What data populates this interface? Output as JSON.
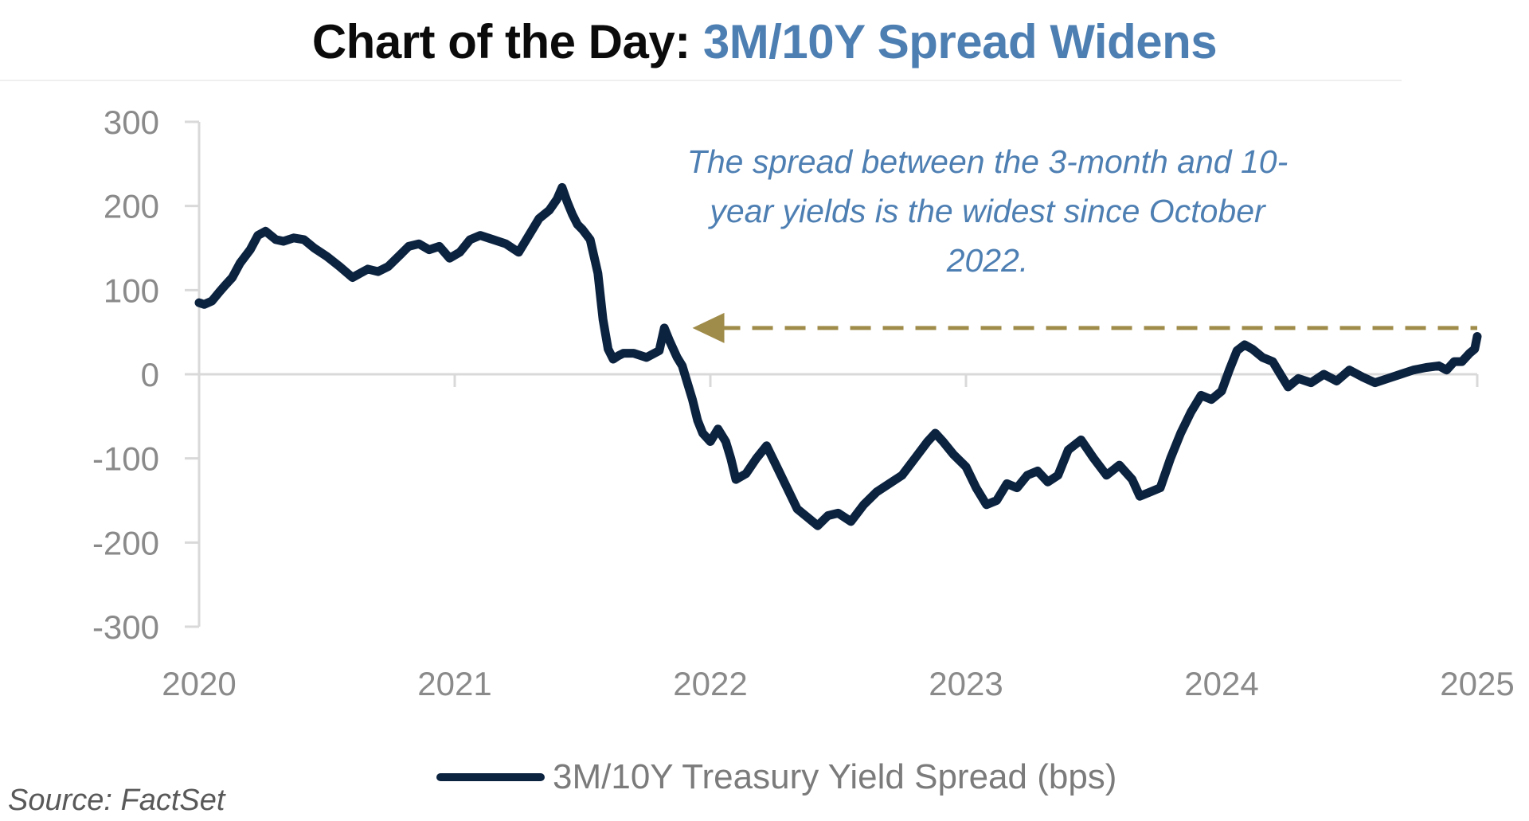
{
  "title": {
    "prefix": "Chart of the Day:",
    "subject": "3M/10Y Spread Widens"
  },
  "colors": {
    "title_text": "#0b0b0b",
    "title_accent": "#4e7fb3",
    "series": "#0c2340",
    "reference_line": "#a08c4a",
    "axis": "#d9d9d9",
    "tick_text": "#8a8a8a"
  },
  "annotation": {
    "text": "The spread between the 3-month and 10-year yields is the widest since October 2022."
  },
  "source": "Source: FactSet",
  "chart_data": {
    "type": "line",
    "title": "Chart of the Day: 3M/10Y Spread Widens",
    "xlabel": "",
    "ylabel": "",
    "xlim": [
      2020,
      2025
    ],
    "ylim": [
      -300,
      300
    ],
    "x_ticks": [
      2020,
      2021,
      2022,
      2023,
      2024,
      2025
    ],
    "x_tick_labels": [
      "2020",
      "2021",
      "2022",
      "2023",
      "2024",
      "2025"
    ],
    "y_ticks": [
      300,
      200,
      100,
      0,
      -100,
      -200,
      -300
    ],
    "y_tick_labels": [
      "300",
      "200",
      "100",
      "0",
      "-100",
      "-200",
      "-300"
    ],
    "grid": false,
    "legend_position": "bottom-center",
    "series": [
      {
        "name": "3M/10Y Treasury Yield Spread (bps)",
        "x": [
          2020.0,
          2020.02,
          2020.05,
          2020.08,
          2020.1,
          2020.13,
          2020.16,
          2020.2,
          2020.23,
          2020.26,
          2020.3,
          2020.33,
          2020.37,
          2020.41,
          2020.45,
          2020.5,
          2020.55,
          2020.6,
          2020.63,
          2020.66,
          2020.7,
          2020.74,
          2020.78,
          2020.82,
          2020.86,
          2020.9,
          2020.94,
          2020.98,
          2021.02,
          2021.06,
          2021.1,
          2021.15,
          2021.2,
          2021.25,
          2021.3,
          2021.33,
          2021.37,
          2021.4,
          2021.42,
          2021.44,
          2021.46,
          2021.48,
          2021.5,
          2021.53,
          2021.56,
          2021.58,
          2021.6,
          2021.62,
          2021.64,
          2021.66,
          2021.7,
          2021.75,
          2021.8,
          2021.82,
          2021.84,
          2021.87,
          2021.89,
          2021.91,
          2021.93,
          2021.95,
          2021.97,
          2022.0,
          2022.03,
          2022.06,
          2022.08,
          2022.1,
          2022.14,
          2022.18,
          2022.22,
          2022.26,
          2022.3,
          2022.34,
          2022.38,
          2022.42,
          2022.46,
          2022.5,
          2022.55,
          2022.6,
          2022.65,
          2022.7,
          2022.75,
          2022.8,
          2022.85,
          2022.88,
          2022.91,
          2022.95,
          2023.0,
          2023.04,
          2023.08,
          2023.12,
          2023.16,
          2023.2,
          2023.24,
          2023.28,
          2023.32,
          2023.36,
          2023.4,
          2023.45,
          2023.5,
          2023.55,
          2023.6,
          2023.65,
          2023.68,
          2023.72,
          2023.76,
          2023.8,
          2023.84,
          2023.88,
          2023.92,
          2023.96,
          2024.0,
          2024.03,
          2024.06,
          2024.09,
          2024.12,
          2024.16,
          2024.2,
          2024.23,
          2024.26,
          2024.3,
          2024.35,
          2024.4,
          2024.45,
          2024.5,
          2024.55,
          2024.6,
          2024.65,
          2024.7,
          2024.75,
          2024.8,
          2024.85,
          2024.88,
          2024.91,
          2024.94,
          2024.97,
          2024.99,
          2025.0
        ],
        "values": [
          85,
          83,
          87,
          98,
          105,
          115,
          132,
          148,
          165,
          170,
          160,
          158,
          162,
          160,
          150,
          140,
          128,
          115,
          120,
          125,
          122,
          128,
          140,
          152,
          155,
          148,
          152,
          138,
          145,
          160,
          165,
          160,
          155,
          145,
          170,
          185,
          195,
          208,
          222,
          205,
          190,
          178,
          172,
          160,
          120,
          65,
          30,
          18,
          22,
          25,
          25,
          20,
          28,
          55,
          40,
          20,
          10,
          -10,
          -30,
          -55,
          -70,
          -80,
          -65,
          -80,
          -100,
          -125,
          -118,
          -100,
          -85,
          -110,
          -135,
          -160,
          -170,
          -180,
          -168,
          -165,
          -175,
          -155,
          -140,
          -130,
          -120,
          -100,
          -80,
          -70,
          -80,
          -95,
          -110,
          -135,
          -155,
          -150,
          -130,
          -135,
          -120,
          -115,
          -128,
          -120,
          -90,
          -78,
          -100,
          -120,
          -108,
          -125,
          -145,
          -140,
          -135,
          -100,
          -70,
          -45,
          -25,
          -30,
          -20,
          5,
          28,
          35,
          30,
          20,
          15,
          0,
          -15,
          -5,
          -10,
          0,
          -8,
          5,
          -3,
          -10,
          -5,
          0,
          5,
          8,
          10,
          5,
          15,
          15,
          25,
          30,
          45
        ]
      }
    ],
    "reference_line": {
      "value": 55,
      "x_start": 2021.93,
      "x_end": 2025.0,
      "style": "dashed-arrow-left"
    }
  }
}
